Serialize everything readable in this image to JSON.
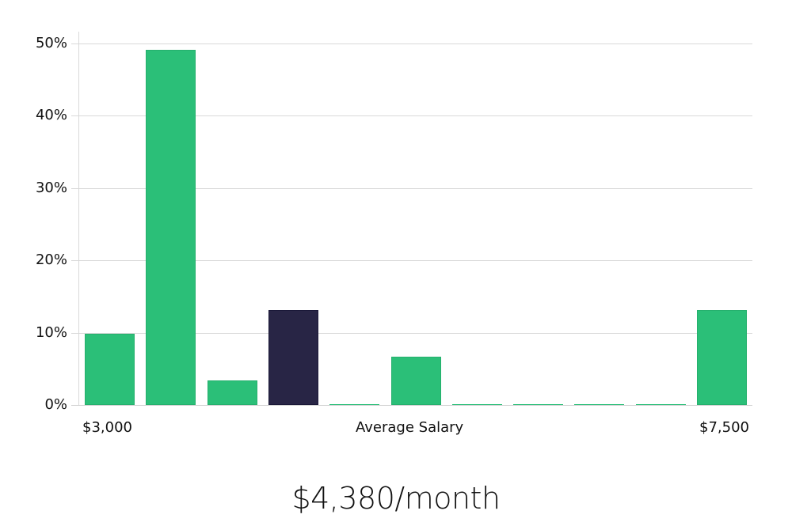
{
  "chart_data": {
    "type": "bar",
    "title": "",
    "xlabel": "Average Salary",
    "ylabel": "",
    "ylim": [
      0,
      50
    ],
    "yticks": [
      "0%",
      "10%",
      "20%",
      "30%",
      "40%",
      "50%"
    ],
    "x_range_labels": {
      "min": "$3,000",
      "max": "$7,500"
    },
    "grid": true,
    "categories": [
      "bin1",
      "bin2",
      "bin3",
      "bin4",
      "bin5",
      "bin6",
      "bin7",
      "bin8",
      "bin9",
      "bin10",
      "bin11"
    ],
    "values": [
      9.8,
      49.1,
      3.4,
      13.1,
      0,
      6.7,
      0,
      0,
      0,
      0,
      13.1
    ],
    "highlight_index": 3,
    "colors": {
      "bar": "#2bbf78",
      "highlight": "#282545",
      "grid": "#d9d9d9"
    }
  },
  "labels": {
    "x_min": "$3,000",
    "x_center": "Average Salary",
    "x_max": "$7,500",
    "headline": "$4,380/month"
  }
}
